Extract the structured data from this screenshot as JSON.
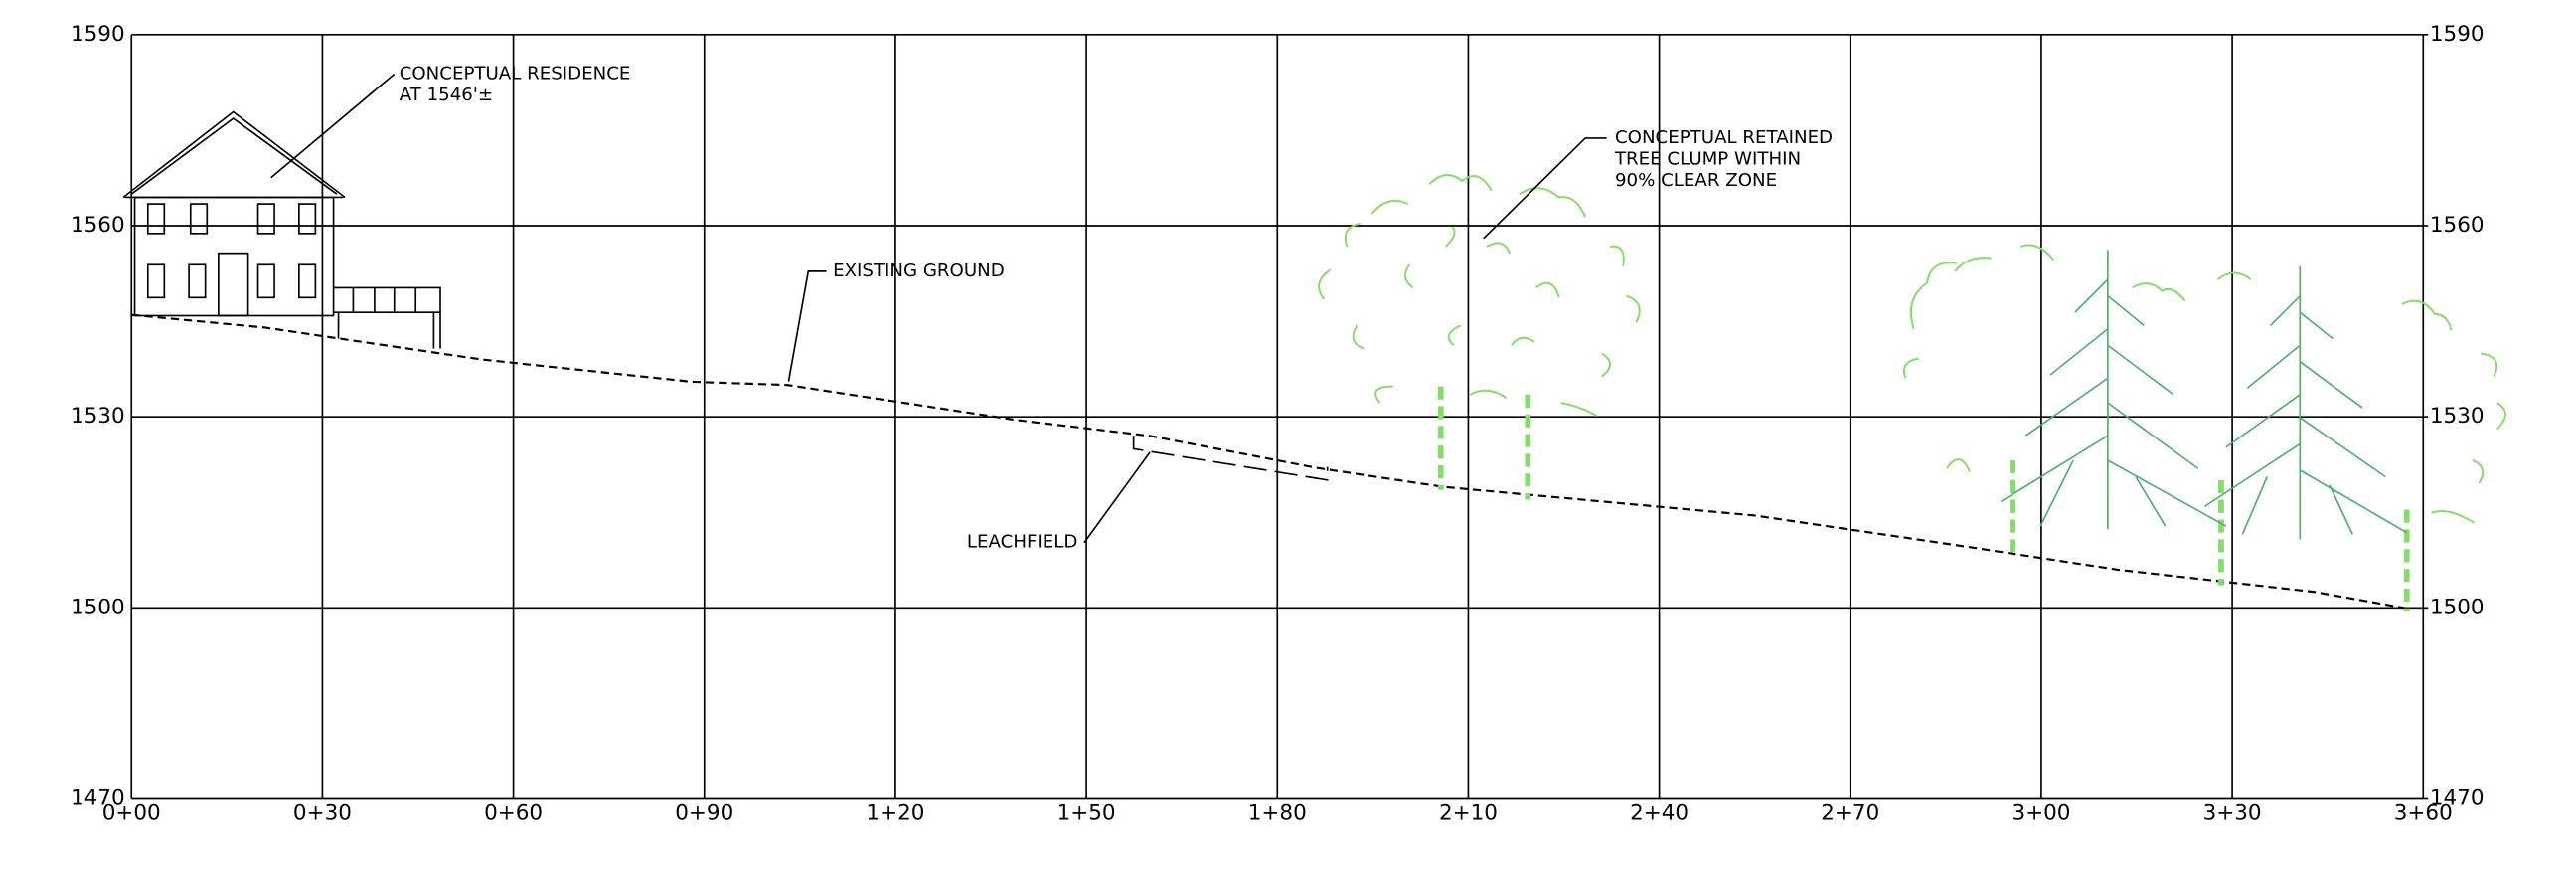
{
  "chart_data": {
    "type": "line",
    "x": [
      0,
      21,
      55,
      88,
      103,
      139,
      160,
      186,
      206,
      255,
      289,
      312,
      343,
      357
    ],
    "series": [
      {
        "name": "EXISTING GROUND",
        "color": "#000000",
        "line_style": "dashed",
        "values": [
          1546,
          1544,
          1539,
          1535.5,
          1535,
          1529.5,
          1527,
          1522,
          1519,
          1514.5,
          1509.5,
          1506,
          1502.5,
          1500
        ]
      }
    ],
    "xlim": [
      0,
      360
    ],
    "xticks": [
      {
        "value": 0,
        "label": "0+00"
      },
      {
        "value": 30,
        "label": "0+30"
      },
      {
        "value": 60,
        "label": "0+60"
      },
      {
        "value": 90,
        "label": "0+90"
      },
      {
        "value": 120,
        "label": "1+20"
      },
      {
        "value": 150,
        "label": "1+50"
      },
      {
        "value": 180,
        "label": "1+80"
      },
      {
        "value": 210,
        "label": "2+10"
      },
      {
        "value": 240,
        "label": "2+40"
      },
      {
        "value": 270,
        "label": "2+70"
      },
      {
        "value": 300,
        "label": "3+00"
      },
      {
        "value": 330,
        "label": "3+30"
      },
      {
        "value": 360,
        "label": "3+60"
      }
    ],
    "ylim": [
      1470,
      1590
    ],
    "yticks": [
      1470,
      1500,
      1530,
      1560,
      1590
    ],
    "y2lim": [
      1470,
      1590
    ],
    "y2ticks": [
      1470,
      1500,
      1530,
      1560,
      1590
    ],
    "grid": true,
    "annotations": [
      {
        "lines": [
          "CONCEPTUAL RESIDENCE",
          "AT 1546'±"
        ]
      },
      {
        "lines": [
          "CONCEPTUAL RETAINED",
          "TREE CLUMP WITHIN",
          "90% CLEAR ZONE"
        ]
      },
      {
        "lines": [
          "LEACHFIELD"
        ]
      }
    ]
  }
}
